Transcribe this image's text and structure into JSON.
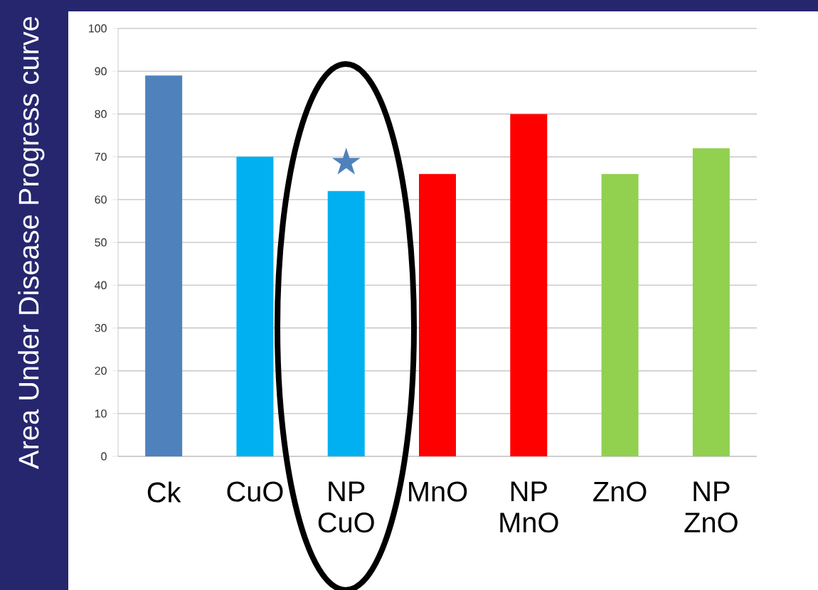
{
  "chart_data": {
    "type": "bar",
    "ylabel": "Area Under Disease Progress curve",
    "categories": [
      "Ck",
      "CuO",
      "NP CuO",
      "MnO",
      "NP MnO",
      "ZnO",
      "NP ZnO"
    ],
    "values": [
      89,
      70,
      62,
      66,
      80,
      66,
      72
    ],
    "colors": [
      "#4f81bd",
      "#00b0f0",
      "#00b0f0",
      "#ff0000",
      "#ff0000",
      "#92d050",
      "#92d050"
    ],
    "ylim": [
      0,
      100
    ],
    "yticks": [
      0,
      10,
      20,
      30,
      40,
      50,
      60,
      70,
      80,
      90,
      100
    ],
    "grid": "y",
    "annotations": [
      "★"
    ]
  }
}
